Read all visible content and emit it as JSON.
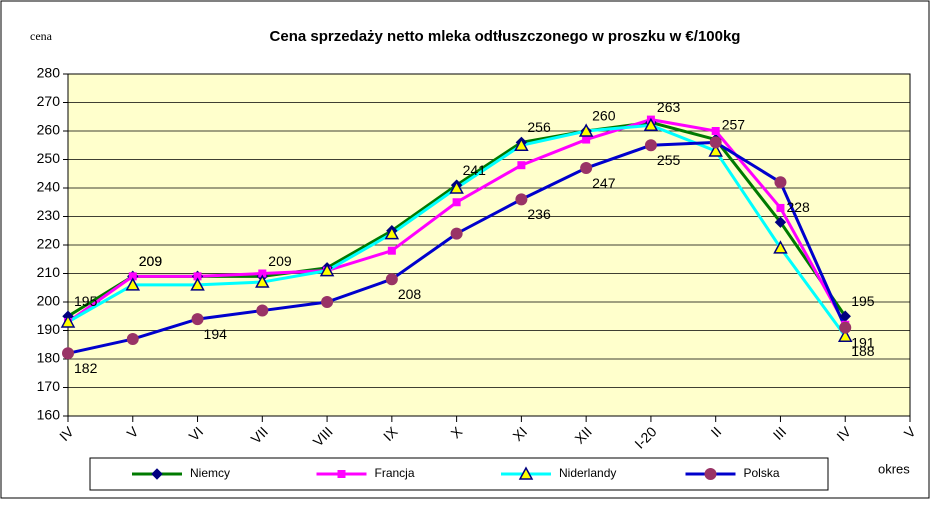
{
  "chart_data": {
    "type": "line",
    "title": "Cena sprzedaży netto mleka odtłuszczonego w proszku w €/100kg",
    "y_label": "cena",
    "x_label": "okres",
    "categories": [
      "IV",
      "V",
      "VI",
      "VII",
      "VIII",
      "IX",
      "X",
      "XI",
      "XII",
      "I-20",
      "II",
      "III",
      "IV",
      "V"
    ],
    "ylim": [
      160,
      280
    ],
    "yticks": [
      160,
      170,
      180,
      190,
      200,
      210,
      220,
      230,
      240,
      250,
      260,
      270,
      280
    ],
    "grid": true,
    "legend": "bottom",
    "plot_background": "#ffffcc",
    "series": [
      {
        "name": "Niemcy",
        "color": "#007a00",
        "marker": "diamond",
        "marker_color": "#000080",
        "values": [
          195,
          209,
          209,
          209,
          212,
          225,
          241,
          256,
          260,
          263,
          257,
          228,
          195,
          null
        ],
        "value_labels": [
          "195",
          "209",
          null,
          "209",
          null,
          null,
          "241",
          "256",
          "260",
          "263",
          "257",
          "228",
          "195",
          null
        ]
      },
      {
        "name": "Francja",
        "color": "#ff00ff",
        "marker": "square",
        "marker_color": "#ff00ff",
        "values": [
          193,
          209,
          209,
          210,
          211,
          218,
          235,
          248,
          257,
          264,
          260,
          233,
          192,
          null
        ],
        "value_labels": [
          null,
          "209",
          null,
          null,
          null,
          null,
          null,
          null,
          null,
          null,
          null,
          null,
          null,
          null
        ]
      },
      {
        "name": "Niderlandy",
        "color": "#00ffff",
        "marker": "triangle",
        "marker_color": "#000080",
        "values": [
          193,
          206,
          206,
          207,
          211,
          224,
          240,
          255,
          260,
          262,
          253,
          219,
          188,
          null
        ],
        "value_labels": [
          null,
          null,
          null,
          null,
          null,
          null,
          null,
          null,
          null,
          null,
          null,
          null,
          "188",
          null
        ]
      },
      {
        "name": "Polska",
        "color": "#0000cc",
        "marker": "circle",
        "marker_color": "#993366",
        "values": [
          182,
          187,
          194,
          197,
          200,
          208,
          224,
          236,
          247,
          255,
          256,
          242,
          191,
          null
        ],
        "value_labels": [
          "182",
          null,
          "194",
          null,
          null,
          "208",
          null,
          "236",
          "247",
          "255",
          null,
          null,
          "191",
          null
        ]
      }
    ]
  }
}
